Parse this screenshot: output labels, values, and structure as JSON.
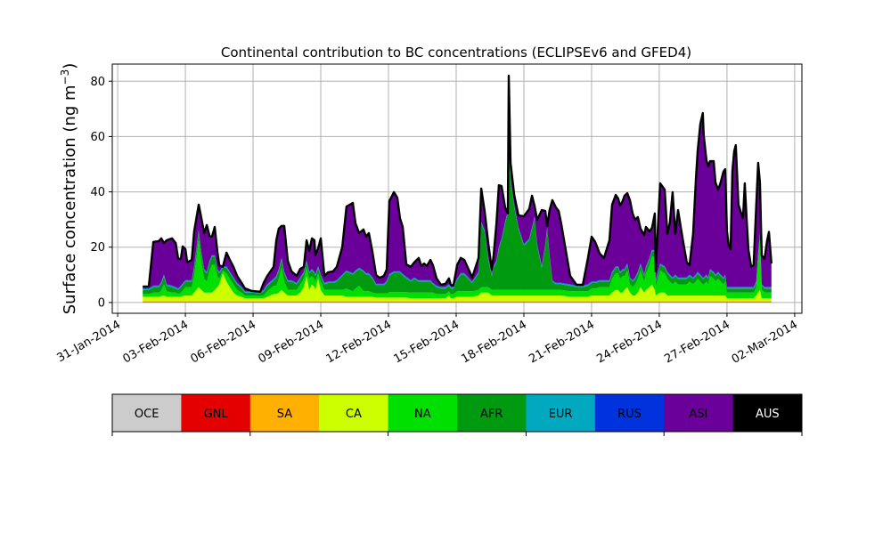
{
  "chart_data": {
    "type": "area",
    "stacked": true,
    "title": "Continental contribution to BC concentrations (ECLIPSEv6 and GFED4)",
    "ylabel": "Surface concentration (ng m",
    "ylabel_sup": "−3",
    "ylabel_close": ")",
    "xlabel": "",
    "x_units": "days since 31-Jan-2014 00:00",
    "xlim": [
      -0.24,
      30.32
    ],
    "ylim": [
      -3.9,
      86.2
    ],
    "grid": true,
    "x_ticks": [
      {
        "day": 0,
        "label": "31-Jan-2014"
      },
      {
        "day": 3,
        "label": "03-Feb-2014"
      },
      {
        "day": 6,
        "label": "06-Feb-2014"
      },
      {
        "day": 9,
        "label": "09-Feb-2014"
      },
      {
        "day": 12,
        "label": "12-Feb-2014"
      },
      {
        "day": 15,
        "label": "15-Feb-2014"
      },
      {
        "day": 18,
        "label": "18-Feb-2014"
      },
      {
        "day": 21,
        "label": "21-Feb-2014"
      },
      {
        "day": 24,
        "label": "24-Feb-2014"
      },
      {
        "day": 27,
        "label": "27-Feb-2014"
      },
      {
        "day": 30,
        "label": "02-Mar-2014"
      }
    ],
    "y_ticks": [
      {
        "value": 0,
        "label": "0"
      },
      {
        "value": 20,
        "label": "20"
      },
      {
        "value": 40,
        "label": "40"
      },
      {
        "value": 60,
        "label": "60"
      },
      {
        "value": 80,
        "label": "80"
      }
    ],
    "legend": {
      "placement": "bottom colorbar",
      "entries": [
        {
          "name": "OCE",
          "color": "#cccccc",
          "text_color": "#000000"
        },
        {
          "name": "GNL",
          "color": "#e50000",
          "text_color": "#000000"
        },
        {
          "name": "SA",
          "color": "#ffb000",
          "text_color": "#000000"
        },
        {
          "name": "CA",
          "color": "#ccff00",
          "text_color": "#000000"
        },
        {
          "name": "NA",
          "color": "#00e000",
          "text_color": "#000000"
        },
        {
          "name": "AFR",
          "color": "#009a10",
          "text_color": "#000000"
        },
        {
          "name": "EUR",
          "color": "#00a8c0",
          "text_color": "#000000"
        },
        {
          "name": "RUS",
          "color": "#0033dd",
          "text_color": "#000000"
        },
        {
          "name": "ASI",
          "color": "#6a0099",
          "text_color": "#000000"
        },
        {
          "name": "AUS",
          "color": "#000000",
          "text_color": "#ffffff"
        }
      ]
    },
    "minor_series_typical": {
      "OCE": 0.1,
      "GNL": 0.15,
      "SA": 0.3,
      "EUR": 0.4,
      "RUS": 0.2,
      "AUS": 0.0
    },
    "point_fields": [
      "day",
      "total",
      "CA",
      "NA",
      "AFR"
    ],
    "points": [
      [
        1.11,
        5.8,
        1.5,
        1,
        1.5
      ],
      [
        1.38,
        5.8,
        1.5,
        1,
        1.5
      ],
      [
        1.58,
        21.9,
        1.5,
        1.5,
        2
      ],
      [
        1.82,
        22.2,
        1.5,
        1.5,
        2
      ],
      [
        1.93,
        23.2,
        1.8,
        2,
        2.5
      ],
      [
        2.05,
        21.5,
        2,
        4,
        3
      ],
      [
        2.17,
        22.5,
        1.5,
        2,
        2
      ],
      [
        2.41,
        23.2,
        1.5,
        1.5,
        2
      ],
      [
        2.57,
        21.5,
        1.5,
        1.5,
        1.5
      ],
      [
        2.68,
        15.8,
        1.5,
        1,
        1.5
      ],
      [
        2.8,
        15.8,
        1.5,
        1.5,
        2
      ],
      [
        2.88,
        20.3,
        1.8,
        2,
        2
      ],
      [
        3.0,
        19.3,
        2,
        3,
        2
      ],
      [
        3.08,
        14.5,
        2,
        3,
        2
      ],
      [
        3.28,
        15.4,
        2,
        3,
        2
      ],
      [
        3.39,
        25.7,
        3,
        6,
        3
      ],
      [
        3.59,
        35.4,
        5,
        17,
        3
      ],
      [
        3.71,
        30.5,
        4,
        10,
        3
      ],
      [
        3.83,
        25.1,
        3,
        5,
        3
      ],
      [
        3.95,
        28,
        3,
        4,
        3
      ],
      [
        4.07,
        24.1,
        3,
        8,
        3
      ],
      [
        4.18,
        23.8,
        3,
        10,
        3
      ],
      [
        4.3,
        27.3,
        4,
        9,
        3
      ],
      [
        4.42,
        18.3,
        5,
        4,
        2
      ],
      [
        4.5,
        13.5,
        6,
        2,
        2
      ],
      [
        4.66,
        12.9,
        10,
        1,
        1
      ],
      [
        4.82,
        18,
        7,
        3,
        2
      ],
      [
        4.97,
        15.4,
        5,
        3,
        2
      ],
      [
        5.13,
        12.9,
        3,
        3,
        2
      ],
      [
        5.29,
        9.6,
        2,
        2,
        2
      ],
      [
        5.49,
        7.1,
        1.5,
        1.5,
        1.5
      ],
      [
        5.64,
        5.1,
        1,
        1,
        1
      ],
      [
        5.92,
        4.2,
        1,
        1,
        1
      ],
      [
        6.32,
        3.9,
        1,
        0.8,
        1
      ],
      [
        6.47,
        7.1,
        1,
        1,
        1.5
      ],
      [
        6.63,
        9.6,
        1.5,
        2,
        2
      ],
      [
        6.91,
        12.9,
        2.5,
        3,
        2
      ],
      [
        7.03,
        22.5,
        2.5,
        3,
        3
      ],
      [
        7.14,
        26.7,
        3,
        5,
        3
      ],
      [
        7.26,
        27.7,
        4,
        8,
        3
      ],
      [
        7.38,
        27.7,
        3,
        4,
        3
      ],
      [
        7.54,
        15.1,
        2,
        2,
        3
      ],
      [
        7.7,
        11.3,
        2,
        2,
        3
      ],
      [
        7.93,
        9.6,
        2,
        2,
        2
      ],
      [
        8.09,
        12.2,
        3,
        3,
        2
      ],
      [
        8.25,
        12.9,
        5,
        3,
        2
      ],
      [
        8.37,
        22.5,
        9,
        3,
        2
      ],
      [
        8.49,
        18.6,
        4,
        4,
        2
      ],
      [
        8.61,
        23.2,
        6,
        3,
        2
      ],
      [
        8.72,
        22.5,
        5,
        3,
        2
      ],
      [
        8.76,
        17,
        4,
        3,
        2
      ],
      [
        8.88,
        19.6,
        8,
        2,
        2
      ],
      [
        9.0,
        23.2,
        4,
        3,
        2
      ],
      [
        9.16,
        9.6,
        2,
        2,
        2
      ],
      [
        9.32,
        10.9,
        2,
        2,
        2.5
      ],
      [
        9.55,
        11.3,
        2,
        2,
        2.5
      ],
      [
        9.71,
        12.9,
        2,
        2,
        3
      ],
      [
        9.95,
        20,
        2,
        2,
        5
      ],
      [
        10.14,
        34.7,
        1.5,
        3,
        6
      ],
      [
        10.42,
        36,
        1.5,
        2,
        6
      ],
      [
        10.54,
        28.6,
        1.5,
        3,
        6
      ],
      [
        10.7,
        25.1,
        1.5,
        4,
        6
      ],
      [
        10.89,
        26.4,
        1.5,
        2,
        7
      ],
      [
        11.01,
        23.8,
        1.5,
        2,
        6
      ],
      [
        11.13,
        25.1,
        1.5,
        2,
        6
      ],
      [
        11.29,
        18.3,
        1.5,
        1.5,
        5
      ],
      [
        11.45,
        9.9,
        1.2,
        1.5,
        3
      ],
      [
        11.61,
        8.9,
        1.2,
        1.5,
        3
      ],
      [
        11.8,
        9.6,
        1.2,
        1.5,
        3
      ],
      [
        11.92,
        11.9,
        1.2,
        1.5,
        4
      ],
      [
        12.04,
        36.7,
        1.2,
        2,
        6
      ],
      [
        12.24,
        39.9,
        1.2,
        2,
        7
      ],
      [
        12.39,
        37.9,
        1.2,
        2,
        7
      ],
      [
        12.51,
        30.5,
        1.2,
        2,
        7
      ],
      [
        12.63,
        27.3,
        1.2,
        2,
        6
      ],
      [
        12.79,
        13.8,
        1.2,
        2,
        5
      ],
      [
        12.99,
        12.9,
        1,
        2,
        4
      ],
      [
        13.14,
        14.5,
        1,
        2,
        5
      ],
      [
        13.34,
        16.1,
        1,
        2,
        4
      ],
      [
        13.46,
        13.2,
        1,
        2,
        4
      ],
      [
        13.58,
        14.1,
        1,
        2,
        4
      ],
      [
        13.7,
        13.2,
        1,
        2,
        4
      ],
      [
        13.86,
        15.4,
        1,
        2,
        4
      ],
      [
        13.97,
        13.5,
        1,
        2,
        3
      ],
      [
        14.13,
        8.7,
        1,
        1.5,
        2.5
      ],
      [
        14.33,
        6.4,
        1,
        1.5,
        2
      ],
      [
        14.53,
        6.8,
        1,
        1.5,
        2
      ],
      [
        14.68,
        8.7,
        2,
        1.5,
        2
      ],
      [
        14.76,
        6.4,
        1,
        1.5,
        2
      ],
      [
        14.88,
        6.1,
        1,
        1.5,
        2
      ],
      [
        15.04,
        13.5,
        1.5,
        2,
        4
      ],
      [
        15.2,
        16.1,
        1.5,
        2,
        6
      ],
      [
        15.36,
        15.4,
        1.5,
        2,
        6
      ],
      [
        15.59,
        11.3,
        1.5,
        2,
        4
      ],
      [
        15.71,
        9.0,
        1.5,
        2,
        3
      ],
      [
        15.99,
        16.1,
        2,
        2,
        6
      ],
      [
        16.11,
        41.2,
        3,
        2,
        23
      ],
      [
        16.26,
        33.1,
        3,
        2,
        20
      ],
      [
        16.42,
        21.5,
        3,
        2,
        10
      ],
      [
        16.58,
        11.9,
        2,
        2,
        5
      ],
      [
        16.66,
        17,
        2,
        2,
        8
      ],
      [
        16.78,
        28.3,
        2,
        2,
        10
      ],
      [
        16.89,
        42.4,
        2,
        2,
        15
      ],
      [
        17.01,
        42.1,
        2,
        2,
        18
      ],
      [
        17.17,
        34.4,
        2,
        2,
        24
      ],
      [
        17.29,
        32.2,
        2,
        2,
        28
      ],
      [
        17.33,
        82,
        2,
        2,
        58
      ],
      [
        17.41,
        50.5,
        2,
        2,
        40
      ],
      [
        17.57,
        38.9,
        2,
        2,
        30
      ],
      [
        17.76,
        31.5,
        2,
        2,
        22
      ],
      [
        18.0,
        31.2,
        2,
        2,
        16
      ],
      [
        18.24,
        33.8,
        2,
        2,
        18
      ],
      [
        18.36,
        38.6,
        2,
        2,
        22
      ],
      [
        18.47,
        35,
        2,
        2,
        26
      ],
      [
        18.59,
        29.9,
        2,
        2,
        16
      ],
      [
        18.79,
        33.4,
        2,
        2,
        8
      ],
      [
        18.95,
        33.1,
        2,
        2,
        16
      ],
      [
        19.03,
        27.7,
        2,
        2,
        22
      ],
      [
        19.14,
        33.4,
        2,
        2,
        12
      ],
      [
        19.26,
        37,
        2,
        2,
        3
      ],
      [
        19.42,
        34.4,
        2,
        2,
        2
      ],
      [
        19.54,
        33.1,
        2,
        2,
        2
      ],
      [
        19.66,
        28.3,
        2,
        2,
        2
      ],
      [
        20.05,
        9.6,
        1.5,
        2,
        2
      ],
      [
        20.33,
        6.4,
        1.5,
        2,
        1.5
      ],
      [
        20.61,
        6.4,
        1.5,
        2,
        1.5
      ],
      [
        20.84,
        16.1,
        1.5,
        2,
        2
      ],
      [
        21.0,
        23.8,
        2,
        2.5,
        2
      ],
      [
        21.16,
        21.9,
        2,
        2.5,
        2
      ],
      [
        21.36,
        17.7,
        2,
        3,
        2
      ],
      [
        21.55,
        16.1,
        2,
        3,
        2
      ],
      [
        21.79,
        22.5,
        2,
        3,
        2
      ],
      [
        21.91,
        35.4,
        3,
        5,
        2
      ],
      [
        22.07,
        38.9,
        4,
        6,
        2
      ],
      [
        22.18,
        37.6,
        4,
        6,
        2
      ],
      [
        22.26,
        35,
        3,
        5,
        2
      ],
      [
        22.38,
        36.7,
        3,
        6,
        2
      ],
      [
        22.46,
        38.6,
        4,
        5,
        2
      ],
      [
        22.58,
        39.5,
        5,
        6,
        2
      ],
      [
        22.7,
        37,
        3,
        3,
        2
      ],
      [
        22.82,
        32.2,
        2,
        3,
        2
      ],
      [
        22.93,
        29.9,
        2,
        4,
        2
      ],
      [
        23.05,
        30.9,
        3,
        5,
        2
      ],
      [
        23.17,
        26.7,
        5,
        6,
        2
      ],
      [
        23.33,
        24.4,
        3,
        4,
        2
      ],
      [
        23.41,
        27.3,
        4,
        6,
        2
      ],
      [
        23.57,
        25.7,
        5,
        8,
        2
      ],
      [
        23.68,
        27,
        6,
        10,
        2
      ],
      [
        23.8,
        32.2,
        4,
        12,
        2
      ],
      [
        23.84,
        11.3,
        2,
        3,
        2
      ],
      [
        24.04,
        43.1,
        3,
        8,
        2
      ],
      [
        24.24,
        40.8,
        3,
        7,
        2
      ],
      [
        24.36,
        24.8,
        2,
        6,
        2
      ],
      [
        24.47,
        28.9,
        2,
        5,
        2
      ],
      [
        24.59,
        39.9,
        2,
        4,
        2
      ],
      [
        24.71,
        24.8,
        2,
        5,
        2
      ],
      [
        24.83,
        33.4,
        2,
        4,
        2
      ],
      [
        24.95,
        27.3,
        2,
        4,
        2
      ],
      [
        25.07,
        21.5,
        2,
        4,
        2
      ],
      [
        25.22,
        14.5,
        2,
        4,
        2
      ],
      [
        25.34,
        13.5,
        2,
        5,
        2
      ],
      [
        25.5,
        24.8,
        2,
        4,
        2
      ],
      [
        25.62,
        44.4,
        2,
        5,
        2
      ],
      [
        25.7,
        54.7,
        2,
        6,
        2
      ],
      [
        25.82,
        64.6,
        2,
        5,
        2
      ],
      [
        25.93,
        68.5,
        2,
        4,
        2
      ],
      [
        25.97,
        60.5,
        2,
        4,
        2
      ],
      [
        26.09,
        51.4,
        2,
        5,
        2
      ],
      [
        26.17,
        49.2,
        2,
        4,
        2
      ],
      [
        26.25,
        51.1,
        2,
        7,
        2
      ],
      [
        26.41,
        51.1,
        2,
        6,
        2
      ],
      [
        26.49,
        43.4,
        2,
        5,
        2
      ],
      [
        26.61,
        40.8,
        2,
        6,
        2
      ],
      [
        26.72,
        43.4,
        2,
        5,
        2
      ],
      [
        26.84,
        47.3,
        2,
        4,
        2
      ],
      [
        26.92,
        48.2,
        2,
        5,
        2
      ],
      [
        27.0,
        25.7,
        1,
        2,
        1.5
      ],
      [
        27.08,
        20.6,
        1,
        2,
        1.5
      ],
      [
        27.16,
        19.3,
        1,
        2,
        1.5
      ],
      [
        27.24,
        47.5,
        1,
        2,
        1.5
      ],
      [
        27.32,
        54.7,
        1,
        2,
        1.5
      ],
      [
        27.39,
        56.9,
        1,
        2,
        1.5
      ],
      [
        27.51,
        35.4,
        1,
        2,
        1.5
      ],
      [
        27.63,
        32.2,
        1,
        2,
        1.5
      ],
      [
        27.71,
        30.5,
        1,
        2,
        1.5
      ],
      [
        27.79,
        43.1,
        1,
        2,
        1.5
      ],
      [
        27.87,
        30.5,
        1,
        2,
        1.5
      ],
      [
        27.95,
        19,
        1,
        2,
        1.5
      ],
      [
        28.07,
        13,
        1,
        2,
        1.5
      ],
      [
        28.18,
        13.5,
        1,
        2,
        1.5
      ],
      [
        28.3,
        35.4,
        2,
        3,
        1.5
      ],
      [
        28.38,
        50.5,
        3,
        12,
        2
      ],
      [
        28.46,
        43.4,
        4,
        18,
        2
      ],
      [
        28.54,
        17,
        1,
        3,
        1.5
      ],
      [
        28.66,
        15.8,
        1,
        2,
        1.5
      ],
      [
        28.78,
        22.5,
        1,
        2,
        1.5
      ],
      [
        28.86,
        25.5,
        1,
        2,
        1.5
      ],
      [
        28.97,
        14.1,
        1,
        2,
        1.5
      ]
    ]
  }
}
